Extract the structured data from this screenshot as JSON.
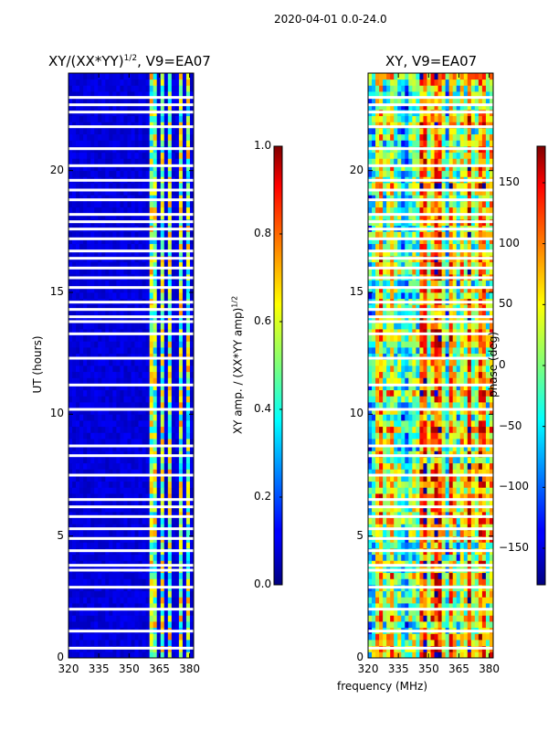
{
  "figure": {
    "suptitle": "2020-04-01 0.0-24.0",
    "shared_xlabel": "frequency (MHz)"
  },
  "chart_data": [
    {
      "type": "heatmap",
      "title": "XY/(XX*YY)",
      "title_superscript": "1/2",
      "title_suffix": ", V9=EA07",
      "xlabel": "",
      "ylabel": "UT (hours)",
      "xlim": [
        320,
        382
      ],
      "ylim": [
        0,
        24
      ],
      "xticks": [
        "320",
        "335",
        "350",
        "365",
        "380"
      ],
      "xtick_values": [
        320,
        335,
        350,
        365,
        380
      ],
      "yticks": [
        "0",
        "5",
        "10",
        "15",
        "20"
      ],
      "ytick_values": [
        0,
        5,
        10,
        15,
        20
      ],
      "colorbar": {
        "label": "XY amp. / (XX*YY amp)",
        "label_superscript": "1/2",
        "range": [
          0.0,
          1.0
        ],
        "ticks": [
          "0.0",
          "0.2",
          "0.4",
          "0.6",
          "0.8",
          "1.0"
        ],
        "tick_values": [
          0.0,
          0.2,
          0.4,
          0.6,
          0.8,
          1.0
        ],
        "colormap": "jet"
      },
      "description": "Low amplitude (~0.05) below 362 MHz; high amplitude (0.3-0.8) bands between 362 and 382 MHz; white gaps mark missing data",
      "flagged_hours": [
        0.4,
        1.1,
        2.0,
        2.9,
        3.6,
        3.8,
        4.4,
        4.9,
        5.3,
        5.8,
        6.2,
        6.5,
        7.5,
        8.3,
        8.7,
        10.2,
        11.2,
        12.3,
        13.3,
        13.8,
        14.0,
        14.3,
        14.6,
        15.2,
        15.6,
        16.0,
        16.4,
        16.7,
        17.2,
        17.6,
        17.9,
        18.2,
        18.8,
        19.2,
        19.6,
        20.2,
        20.9,
        21.8,
        22.4,
        22.7,
        23.0
      ],
      "high_bands_mhz": [
        [
          361,
          364
        ],
        [
          366,
          368
        ],
        [
          369,
          371
        ],
        [
          374,
          376
        ],
        [
          378,
          381
        ]
      ]
    },
    {
      "type": "heatmap",
      "title": "XY, V9=EA07",
      "xlabel": "frequency (MHz)",
      "ylabel": "",
      "xlim": [
        320,
        382
      ],
      "ylim": [
        0,
        24
      ],
      "xticks": [
        "320",
        "335",
        "350",
        "365",
        "380"
      ],
      "xtick_values": [
        320,
        335,
        350,
        365,
        380
      ],
      "yticks": [
        "0",
        "5",
        "10",
        "15",
        "20"
      ],
      "ytick_values": [
        0,
        5,
        10,
        15,
        20
      ],
      "colorbar": {
        "label": "phase (deg)",
        "range": [
          -180,
          180
        ],
        "ticks": [
          "−150",
          "−100",
          "−50",
          "0",
          "50",
          "100",
          "150"
        ],
        "tick_values": [
          -150,
          -100,
          -50,
          0,
          50,
          100,
          150
        ],
        "colormap": "jet"
      },
      "description": "Noisy phase (-180 to 180 deg) across all frequencies and hours with white gaps where data is flagged",
      "flagged_hours": [
        0.4,
        1.1,
        2.0,
        2.9,
        3.6,
        3.8,
        4.4,
        4.9,
        5.3,
        5.8,
        6.2,
        6.5,
        7.5,
        8.3,
        8.7,
        10.2,
        11.2,
        12.3,
        13.3,
        13.8,
        14.0,
        14.3,
        14.6,
        15.2,
        15.6,
        16.0,
        16.4,
        16.7,
        17.2,
        17.6,
        17.9,
        18.2,
        18.8,
        19.2,
        19.6,
        20.2,
        20.9,
        21.8,
        22.4,
        22.7,
        23.0
      ]
    }
  ]
}
